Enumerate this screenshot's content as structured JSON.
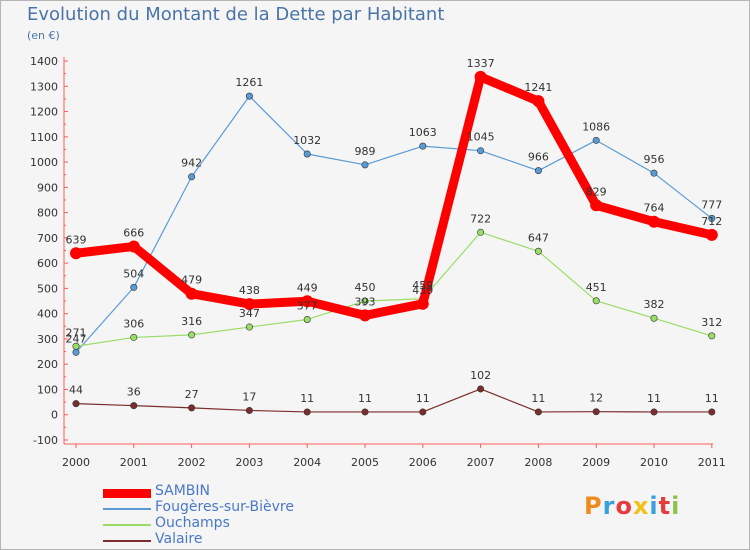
{
  "title": "Evolution du Montant de la Dette par Habitant",
  "subtitle": "(en €)",
  "chart_data": {
    "type": "line",
    "x": [
      "2000",
      "2001",
      "2002",
      "2003",
      "2004",
      "2005",
      "2006",
      "2007",
      "2008",
      "2009",
      "2010",
      "2011"
    ],
    "y_ticks": [
      "-100",
      "0",
      "100",
      "200",
      "300",
      "400",
      "500",
      "600",
      "700",
      "800",
      "900",
      "1000",
      "1100",
      "1200",
      "1300",
      "1400"
    ],
    "ylim": [
      -100,
      1400
    ],
    "grid": false,
    "legend_position": "bottom-left",
    "series": [
      {
        "name": "SAMBIN",
        "color": "#ff0000",
        "values": [
          639,
          666,
          479,
          438,
          449,
          393,
          439,
          1337,
          1241,
          829,
          764,
          712
        ],
        "labels": [
          "639",
          "666",
          "479",
          "438",
          "449",
          "393",
          "439",
          "1337",
          "1241",
          "829",
          "764",
          "712"
        ]
      },
      {
        "name": "Fougères-sur-Bièvre",
        "color": "#5b9bd5",
        "values": [
          247,
          504,
          942,
          1261,
          1032,
          989,
          1063,
          1045,
          966,
          1086,
          956,
          777
        ],
        "labels": [
          "247",
          "504",
          "942",
          "1261",
          "1032",
          "989",
          "1063",
          "1045",
          "966",
          "1086",
          "956",
          "777"
        ]
      },
      {
        "name": "Ouchamps",
        "color": "#99dd66",
        "values": [
          271,
          306,
          316,
          347,
          377,
          450,
          459,
          722,
          647,
          451,
          382,
          312
        ],
        "labels": [
          "271",
          "306",
          "316",
          "347",
          "377",
          "450",
          "459",
          "722",
          "647",
          "451",
          "382",
          "312"
        ]
      },
      {
        "name": "Valaire",
        "color": "#7b2c2c",
        "values": [
          44,
          36,
          27,
          17,
          11,
          11,
          11,
          102,
          11,
          12,
          11,
          11
        ],
        "labels": [
          "44",
          "36",
          "27",
          "17",
          "11",
          "11",
          "11",
          "102",
          "11",
          "12",
          "11",
          "11"
        ]
      }
    ]
  },
  "logo": {
    "text": "Proxiti",
    "letter_colors": [
      "#f08a1c",
      "#3aa0dc",
      "#e83c3c",
      "#f2c018",
      "#3aa0dc",
      "#e83c3c",
      "#8bc34a"
    ]
  }
}
